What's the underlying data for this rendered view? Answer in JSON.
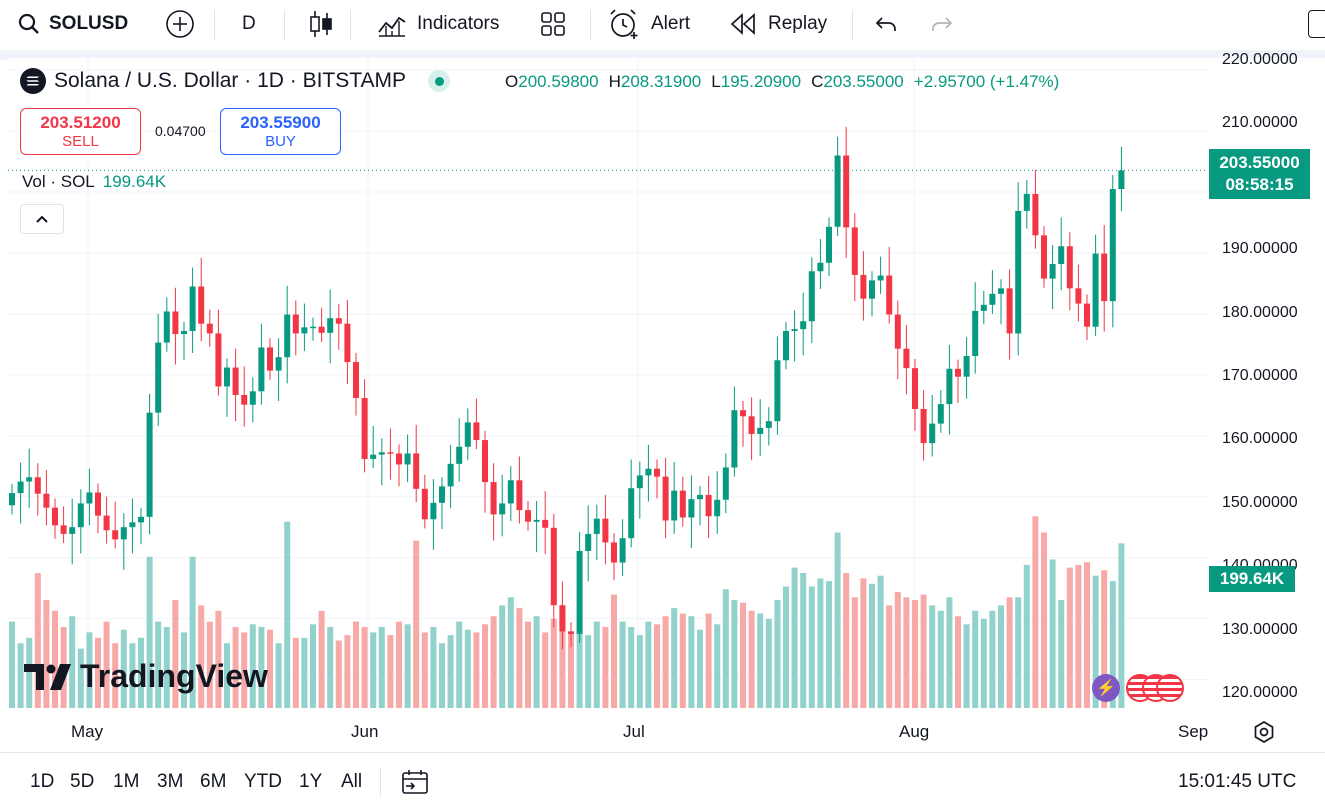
{
  "toolbar": {
    "symbol": "SOLUSD",
    "interval": "D",
    "indicators_label": "Indicators",
    "alert_label": "Alert",
    "replay_label": "Replay"
  },
  "legend": {
    "title": "Solana / U.S. Dollar · 1D · BITSTAMP",
    "open_label": "O",
    "open": "200.59800",
    "high_label": "H",
    "high": "208.31900",
    "low_label": "L",
    "low": "195.20900",
    "close_label": "C",
    "close": "203.55000",
    "change": "+2.95700 (+1.47%)"
  },
  "trade": {
    "sell_price": "203.51200",
    "sell_label": "SELL",
    "spread": "0.04700",
    "buy_price": "203.55900",
    "buy_label": "BUY"
  },
  "volume_legend": {
    "label": "Vol · SOL",
    "value": "199.64K"
  },
  "watermark": "TradingView",
  "price_axis": {
    "labels": [
      "220.00000",
      "210.00000",
      "190.00000",
      "180.00000",
      "170.00000",
      "160.00000",
      "150.00000",
      "140.00000",
      "130.00000",
      "120.00000"
    ],
    "last_price": "203.55000",
    "countdown": "08:58:15",
    "volume_tag": "199.64K"
  },
  "time_axis": {
    "labels": [
      "May",
      "Jun",
      "Jul",
      "Aug",
      "Sep"
    ]
  },
  "bottombar": {
    "ranges": [
      "1D",
      "5D",
      "1M",
      "3M",
      "6M",
      "YTD",
      "1Y",
      "All"
    ],
    "clock": "15:01:45 UTC"
  },
  "colors": {
    "up": "#089981",
    "down": "#f23645",
    "vol_up": "#92d2cc",
    "vol_down": "#f7a9a7",
    "buy": "#2962ff"
  },
  "chart_data": {
    "type": "candlestick",
    "ylim": [
      115,
      222
    ],
    "closes": [
      150.6,
      152.5,
      153.2,
      150.5,
      148.2,
      145.3,
      143.9,
      145.0,
      148.9,
      150.7,
      146.9,
      144.5,
      143.0,
      145.0,
      145.8,
      146.7,
      163.8,
      175.3,
      180.4,
      176.7,
      177.2,
      184.5,
      178.4,
      176.8,
      168.1,
      171.2,
      166.7,
      165.1,
      167.3,
      174.5,
      170.7,
      172.9,
      179.9,
      176.8,
      177.8,
      177.9,
      176.9,
      179.3,
      178.4,
      172.1,
      166.2,
      156.2,
      156.9,
      157.3,
      157.1,
      155.3,
      157.1,
      151.3,
      146.3,
      149.0,
      151.7,
      155.4,
      158.2,
      162.2,
      159.3,
      152.4,
      147.1,
      148.9,
      152.7,
      147.8,
      145.9,
      146.2,
      144.9,
      132.2,
      127.9,
      127.5,
      141.1,
      143.9,
      146.4,
      142.5,
      139.2,
      143.2,
      151.4,
      153.5,
      154.6,
      153.3,
      146.1,
      151.0,
      146.6,
      149.6,
      150.3,
      146.8,
      149.5,
      154.8,
      164.2,
      163.2,
      160.3,
      161.3,
      162.4,
      172.4,
      177.2,
      177.5,
      178.8,
      187.0,
      188.4,
      194.3,
      206.0,
      194.2,
      186.4,
      182.5,
      185.5,
      186.3,
      179.9,
      174.3,
      171.1,
      164.4,
      158.8,
      162.0,
      165.2,
      171.0,
      169.7,
      173.1,
      180.5,
      181.5,
      183.3,
      184.2,
      176.8,
      196.9,
      199.7,
      192.9,
      185.8,
      188.2,
      191.1,
      184.2,
      181.7,
      177.9,
      189.9,
      182.1,
      200.5,
      203.55
    ],
    "volumes": [
      160,
      120,
      130,
      250,
      200,
      180,
      150,
      170,
      110,
      140,
      130,
      160,
      120,
      145,
      120,
      130,
      280,
      160,
      150,
      200,
      140,
      280,
      190,
      160,
      180,
      120,
      150,
      140,
      155,
      150,
      145,
      120,
      345,
      130,
      130,
      155,
      180,
      150,
      125,
      135,
      160,
      150,
      140,
      150,
      135,
      160,
      155,
      310,
      140,
      150,
      120,
      135,
      160,
      145,
      140,
      155,
      170,
      190,
      205,
      185,
      160,
      170,
      140,
      165,
      170,
      140,
      145,
      135,
      160,
      150,
      210,
      160,
      150,
      135,
      160,
      155,
      170,
      185,
      175,
      170,
      145,
      175,
      155,
      220,
      200,
      195,
      180,
      175,
      165,
      200,
      225,
      260,
      250,
      225,
      240,
      235,
      325,
      250,
      205,
      240,
      230,
      245,
      190,
      215,
      205,
      200,
      210,
      190,
      180,
      205,
      170,
      155,
      180,
      165,
      180,
      190,
      205,
      205,
      265,
      355,
      325,
      275,
      200,
      260,
      265,
      270,
      245,
      255,
      235,
      305
    ],
    "last_volume_tag": "199.64K"
  }
}
